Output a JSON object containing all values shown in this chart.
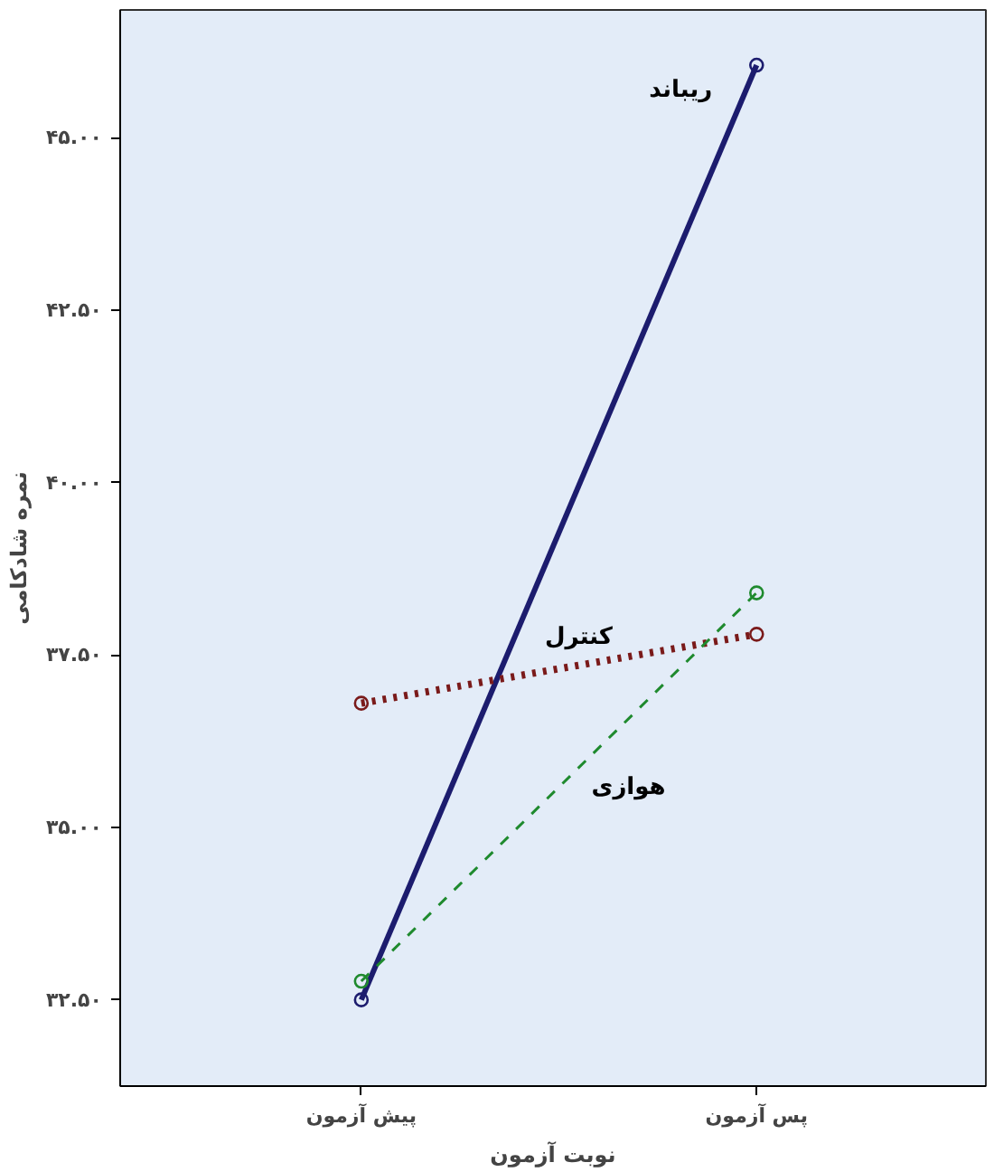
{
  "chart_data": {
    "type": "line",
    "xlabel": "نوبت آزمون",
    "ylabel": "نمره شادکامی",
    "categories": [
      "پیش آزمون",
      "پس آزمون"
    ],
    "series": [
      {
        "name": "ریباند",
        "color": "#1c1c6e",
        "values": [
          32.5,
          46.05
        ],
        "line_style": "solid",
        "marker": "circle"
      },
      {
        "name": "کنترل",
        "color": "#7a1a1a",
        "values": [
          36.8,
          37.8
        ],
        "line_style": "dotted",
        "marker": "circle"
      },
      {
        "name": "هوازی",
        "color": "#1f8a2e",
        "values": [
          32.77,
          38.4
        ],
        "line_style": "dashed",
        "marker": "circle"
      }
    ],
    "ylim": [
      31.25,
      46.85
    ],
    "yticks": [
      {
        "value": 32.5,
        "label": "۳۲.۵۰"
      },
      {
        "value": 35,
        "label": "۳۵.۰۰"
      },
      {
        "value": 37.5,
        "label": "۳۷.۵۰"
      },
      {
        "value": 40,
        "label": "۴۰.۰۰"
      },
      {
        "value": 42.5,
        "label": "۴۲.۵۰"
      },
      {
        "value": 45,
        "label": "۴۵.۰۰"
      }
    ],
    "grid": false
  }
}
